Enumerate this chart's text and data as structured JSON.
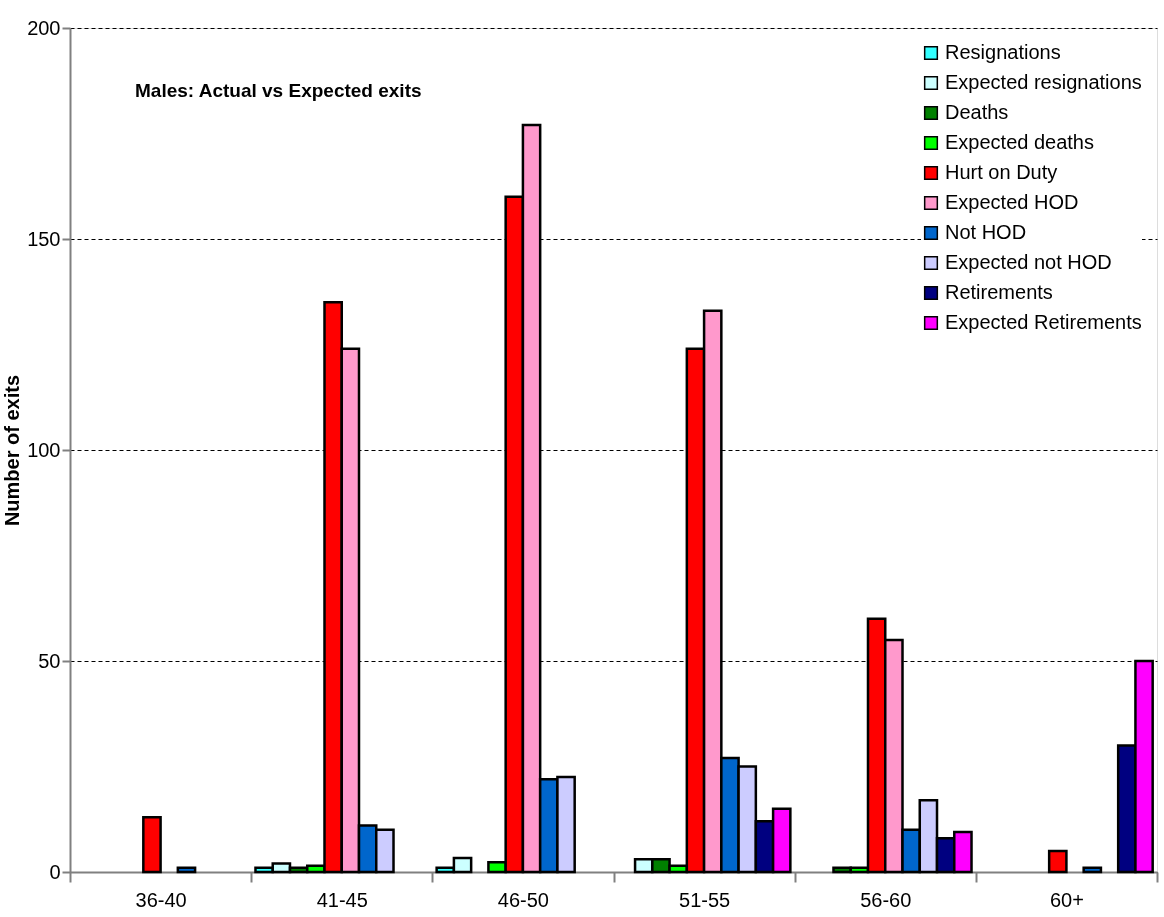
{
  "chart_data": {
    "type": "bar",
    "title": "Males: Actual vs Expected exits",
    "ylabel": "Number of exits",
    "categories": [
      "36-40",
      "41-45",
      "46-50",
      "51-55",
      "56-60",
      "60+"
    ],
    "series": [
      {
        "name": "Resignations",
        "color": "#33ffff",
        "values": [
          0,
          1,
          1,
          0,
          0,
          0
        ]
      },
      {
        "name": "Expected resignations",
        "color": "#ccffff",
        "values": [
          0,
          2,
          3.3,
          3,
          0,
          0
        ]
      },
      {
        "name": "Deaths",
        "color": "#008000",
        "values": [
          0,
          1,
          0,
          3,
          1,
          0
        ]
      },
      {
        "name": "Expected deaths",
        "color": "#00ff00",
        "values": [
          0,
          1.5,
          2.3,
          1.5,
          1,
          0
        ]
      },
      {
        "name": "Hurt on Duty",
        "color": "#ff0000",
        "values": [
          13,
          135,
          160,
          124,
          60,
          5
        ]
      },
      {
        "name": "Expected HOD",
        "color": "#ff99cc",
        "values": [
          0,
          124,
          177,
          133,
          55,
          0
        ]
      },
      {
        "name": "Not HOD",
        "color": "#0066cc",
        "values": [
          1,
          11,
          22,
          27,
          10,
          1
        ]
      },
      {
        "name": "Expected not HOD",
        "color": "#ccccff",
        "values": [
          0,
          10,
          22.5,
          25,
          17,
          0
        ]
      },
      {
        "name": "Retirements",
        "color": "#000080",
        "values": [
          0,
          0,
          0,
          12,
          8,
          30
        ]
      },
      {
        "name": "Expected Retirements",
        "color": "#ff00ff",
        "values": [
          0,
          0,
          0,
          15,
          9.5,
          50
        ]
      }
    ],
    "ylim": [
      0,
      200
    ],
    "yticks": [
      0,
      50,
      100,
      150,
      200
    ],
    "grid": "y",
    "legend": "top right"
  }
}
